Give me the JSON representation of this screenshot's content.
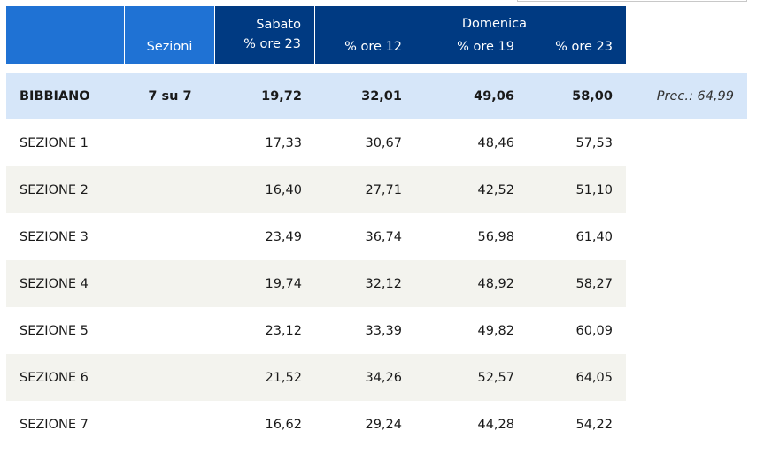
{
  "header": {
    "sezioni_label": "Sezioni",
    "sabato_label": "Sabato",
    "sabato_sub": "% ore 23",
    "domenica_label": "Domenica",
    "domenica_sub1": "% ore 12",
    "domenica_sub2": "% ore 19",
    "domenica_sub3": "% ore 23"
  },
  "total": {
    "name": "BIBBIANO",
    "sezioni": "7 su 7",
    "sab_23": "19,72",
    "dom_12": "32,01",
    "dom_19": "49,06",
    "dom_23": "58,00",
    "prec": "Prec.: 64,99"
  },
  "rows": [
    {
      "name": "SEZIONE 1",
      "sab_23": "17,33",
      "dom_12": "30,67",
      "dom_19": "48,46",
      "dom_23": "57,53"
    },
    {
      "name": "SEZIONE 2",
      "sab_23": "16,40",
      "dom_12": "27,71",
      "dom_19": "42,52",
      "dom_23": "51,10"
    },
    {
      "name": "SEZIONE 3",
      "sab_23": "23,49",
      "dom_12": "36,74",
      "dom_19": "56,98",
      "dom_23": "61,40"
    },
    {
      "name": "SEZIONE 4",
      "sab_23": "19,74",
      "dom_12": "32,12",
      "dom_19": "48,92",
      "dom_23": "58,27"
    },
    {
      "name": "SEZIONE 5",
      "sab_23": "23,12",
      "dom_12": "33,39",
      "dom_19": "49,82",
      "dom_23": "60,09"
    },
    {
      "name": "SEZIONE 6",
      "sab_23": "21,52",
      "dom_12": "34,26",
      "dom_19": "52,57",
      "dom_23": "64,05"
    },
    {
      "name": "SEZIONE 7",
      "sab_23": "16,62",
      "dom_12": "29,24",
      "dom_19": "44,28",
      "dom_23": "54,22"
    }
  ],
  "colors": {
    "header_light": "#1f72d4",
    "header_dark": "#003a82",
    "total_row": "#d6e6f9",
    "alt_row": "#f3f3ee"
  }
}
